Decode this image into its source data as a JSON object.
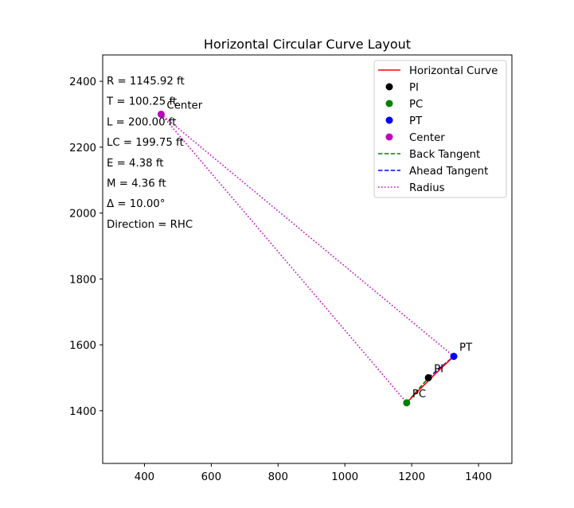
{
  "chart_data": {
    "type": "line",
    "title": "Horizontal Circular Curve Layout",
    "xlabel": "",
    "ylabel": "",
    "xlim": [
      275,
      1500
    ],
    "ylim": [
      1240,
      2480
    ],
    "x_ticks": [
      400,
      600,
      800,
      1000,
      1200,
      1400
    ],
    "y_ticks": [
      1400,
      1600,
      1800,
      2000,
      2200,
      2400
    ],
    "grid": false,
    "legend_position": "upper right",
    "points": {
      "PI": {
        "x": 1250,
        "y": 1500,
        "label": "PI",
        "color": "#000000"
      },
      "PC": {
        "x": 1185,
        "y": 1424,
        "label": "PC",
        "color": "#008000"
      },
      "PT": {
        "x": 1326,
        "y": 1565,
        "label": "PT",
        "color": "#0000ff"
      },
      "Center": {
        "x": 450,
        "y": 2300,
        "label": "Center",
        "color": "#bf00bf"
      }
    },
    "series": [
      {
        "name": "Horizontal Curve",
        "style": "solid",
        "color": "#ff0000",
        "x": [
          1185,
          1211,
          1237,
          1262,
          1285,
          1306,
          1326
        ],
        "y": [
          1424,
          1452,
          1478,
          1503,
          1526,
          1546,
          1565
        ]
      },
      {
        "name": "PI",
        "style": "marker",
        "color": "#000000",
        "x": [
          1250
        ],
        "y": [
          1500
        ]
      },
      {
        "name": "PC",
        "style": "marker",
        "color": "#008000",
        "x": [
          1185
        ],
        "y": [
          1424
        ]
      },
      {
        "name": "PT",
        "style": "marker",
        "color": "#0000ff",
        "x": [
          1326
        ],
        "y": [
          1565
        ]
      },
      {
        "name": "Center",
        "style": "marker",
        "color": "#bf00bf",
        "x": [
          450
        ],
        "y": [
          2300
        ]
      },
      {
        "name": "Back Tangent",
        "style": "dashed",
        "color": "#008000",
        "x": [
          1185,
          1250
        ],
        "y": [
          1424,
          1500
        ]
      },
      {
        "name": "Ahead Tangent",
        "style": "dashed",
        "color": "#0000ff",
        "x": [
          1250,
          1326
        ],
        "y": [
          1500,
          1565
        ]
      },
      {
        "name": "Radius",
        "style": "dotted",
        "color": "#bf00bf",
        "segments": [
          {
            "x": [
              450,
              1185
            ],
            "y": [
              2300,
              1424
            ]
          },
          {
            "x": [
              450,
              1326
            ],
            "y": [
              2300,
              1565
            ]
          }
        ]
      }
    ],
    "parameters": [
      "R = 1145.92 ft",
      "T = 100.25 ft",
      "L = 200.00 ft",
      "LC = 199.75 ft",
      "E = 4.38 ft",
      "M = 4.36 ft",
      "Δ = 10.00°",
      "Direction = RHC"
    ]
  }
}
